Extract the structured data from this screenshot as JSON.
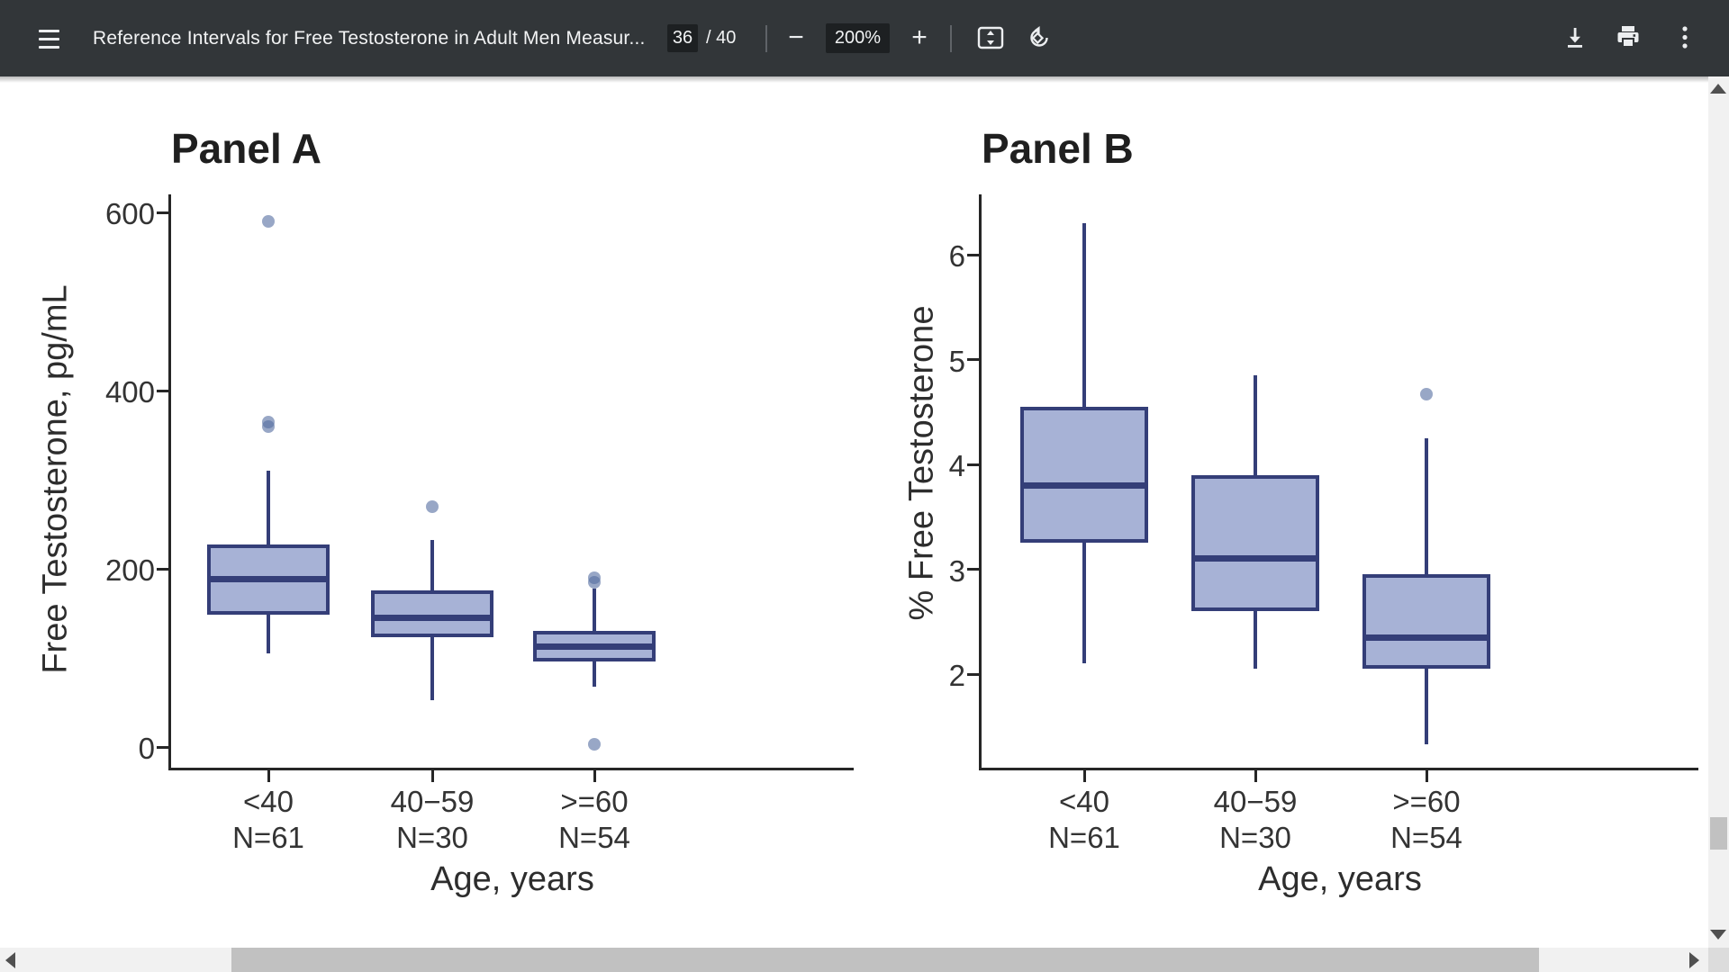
{
  "toolbar": {
    "title": "Reference Intervals for Free Testosterone in Adult Men Measur...",
    "page_current": "36",
    "page_total": "/ 40",
    "zoom_level": "200%",
    "zoom_out_glyph": "−",
    "zoom_in_glyph": "+",
    "colors": {
      "bg": "#323639",
      "field_bg": "#1d2022",
      "text": "#f1f3f4"
    }
  },
  "chart_style": {
    "box_fill": "#a7b2d6",
    "box_border": "#343e78",
    "outlier_fill": "rgba(84,108,160,0.60)",
    "axis_color": "#262626",
    "label_color": "#333333"
  },
  "chart_data": [
    {
      "type": "box",
      "title": "Panel A",
      "ylabel": "Free Testosterone, pg/mL",
      "xlabel": "Age, years",
      "ylim": [
        0,
        620
      ],
      "yticks": [
        0,
        200,
        400,
        600
      ],
      "categories": [
        "<40",
        "40−59",
        ">=60"
      ],
      "n_labels": [
        "N=61",
        "N=30",
        "N=54"
      ],
      "boxes": [
        {
          "whisker_low": 105,
          "q1": 148,
          "median": 188,
          "q3": 227,
          "whisker_high": 310,
          "outliers": [
            360,
            365,
            590
          ]
        },
        {
          "whisker_low": 53,
          "q1": 123,
          "median": 145,
          "q3": 176,
          "whisker_high": 232,
          "outliers": [
            270
          ]
        },
        {
          "whisker_low": 68,
          "q1": 96,
          "median": 113,
          "q3": 130,
          "whisker_high": 178,
          "outliers": [
            3,
            185,
            190
          ]
        }
      ],
      "legend": "none",
      "grid": false
    },
    {
      "type": "box",
      "title": "Panel B",
      "ylabel": "% Free Testosterone",
      "xlabel": "Age, years",
      "ylim": [
        1.1,
        6.6
      ],
      "yticks": [
        2,
        3,
        4,
        5,
        6
      ],
      "categories": [
        "<40",
        "40−59",
        ">=60"
      ],
      "n_labels": [
        "N=61",
        "N=30",
        "N=54"
      ],
      "boxes": [
        {
          "whisker_low": 2.1,
          "q1": 3.25,
          "median": 3.8,
          "q3": 4.55,
          "whisker_high": 6.3,
          "outliers": []
        },
        {
          "whisker_low": 2.05,
          "q1": 2.6,
          "median": 3.1,
          "q3": 3.9,
          "whisker_high": 4.85,
          "outliers": []
        },
        {
          "whisker_low": 1.33,
          "q1": 2.05,
          "median": 2.35,
          "q3": 2.95,
          "whisker_high": 4.25,
          "outliers": [
            4.67
          ]
        }
      ],
      "legend": "none",
      "grid": false
    }
  ]
}
